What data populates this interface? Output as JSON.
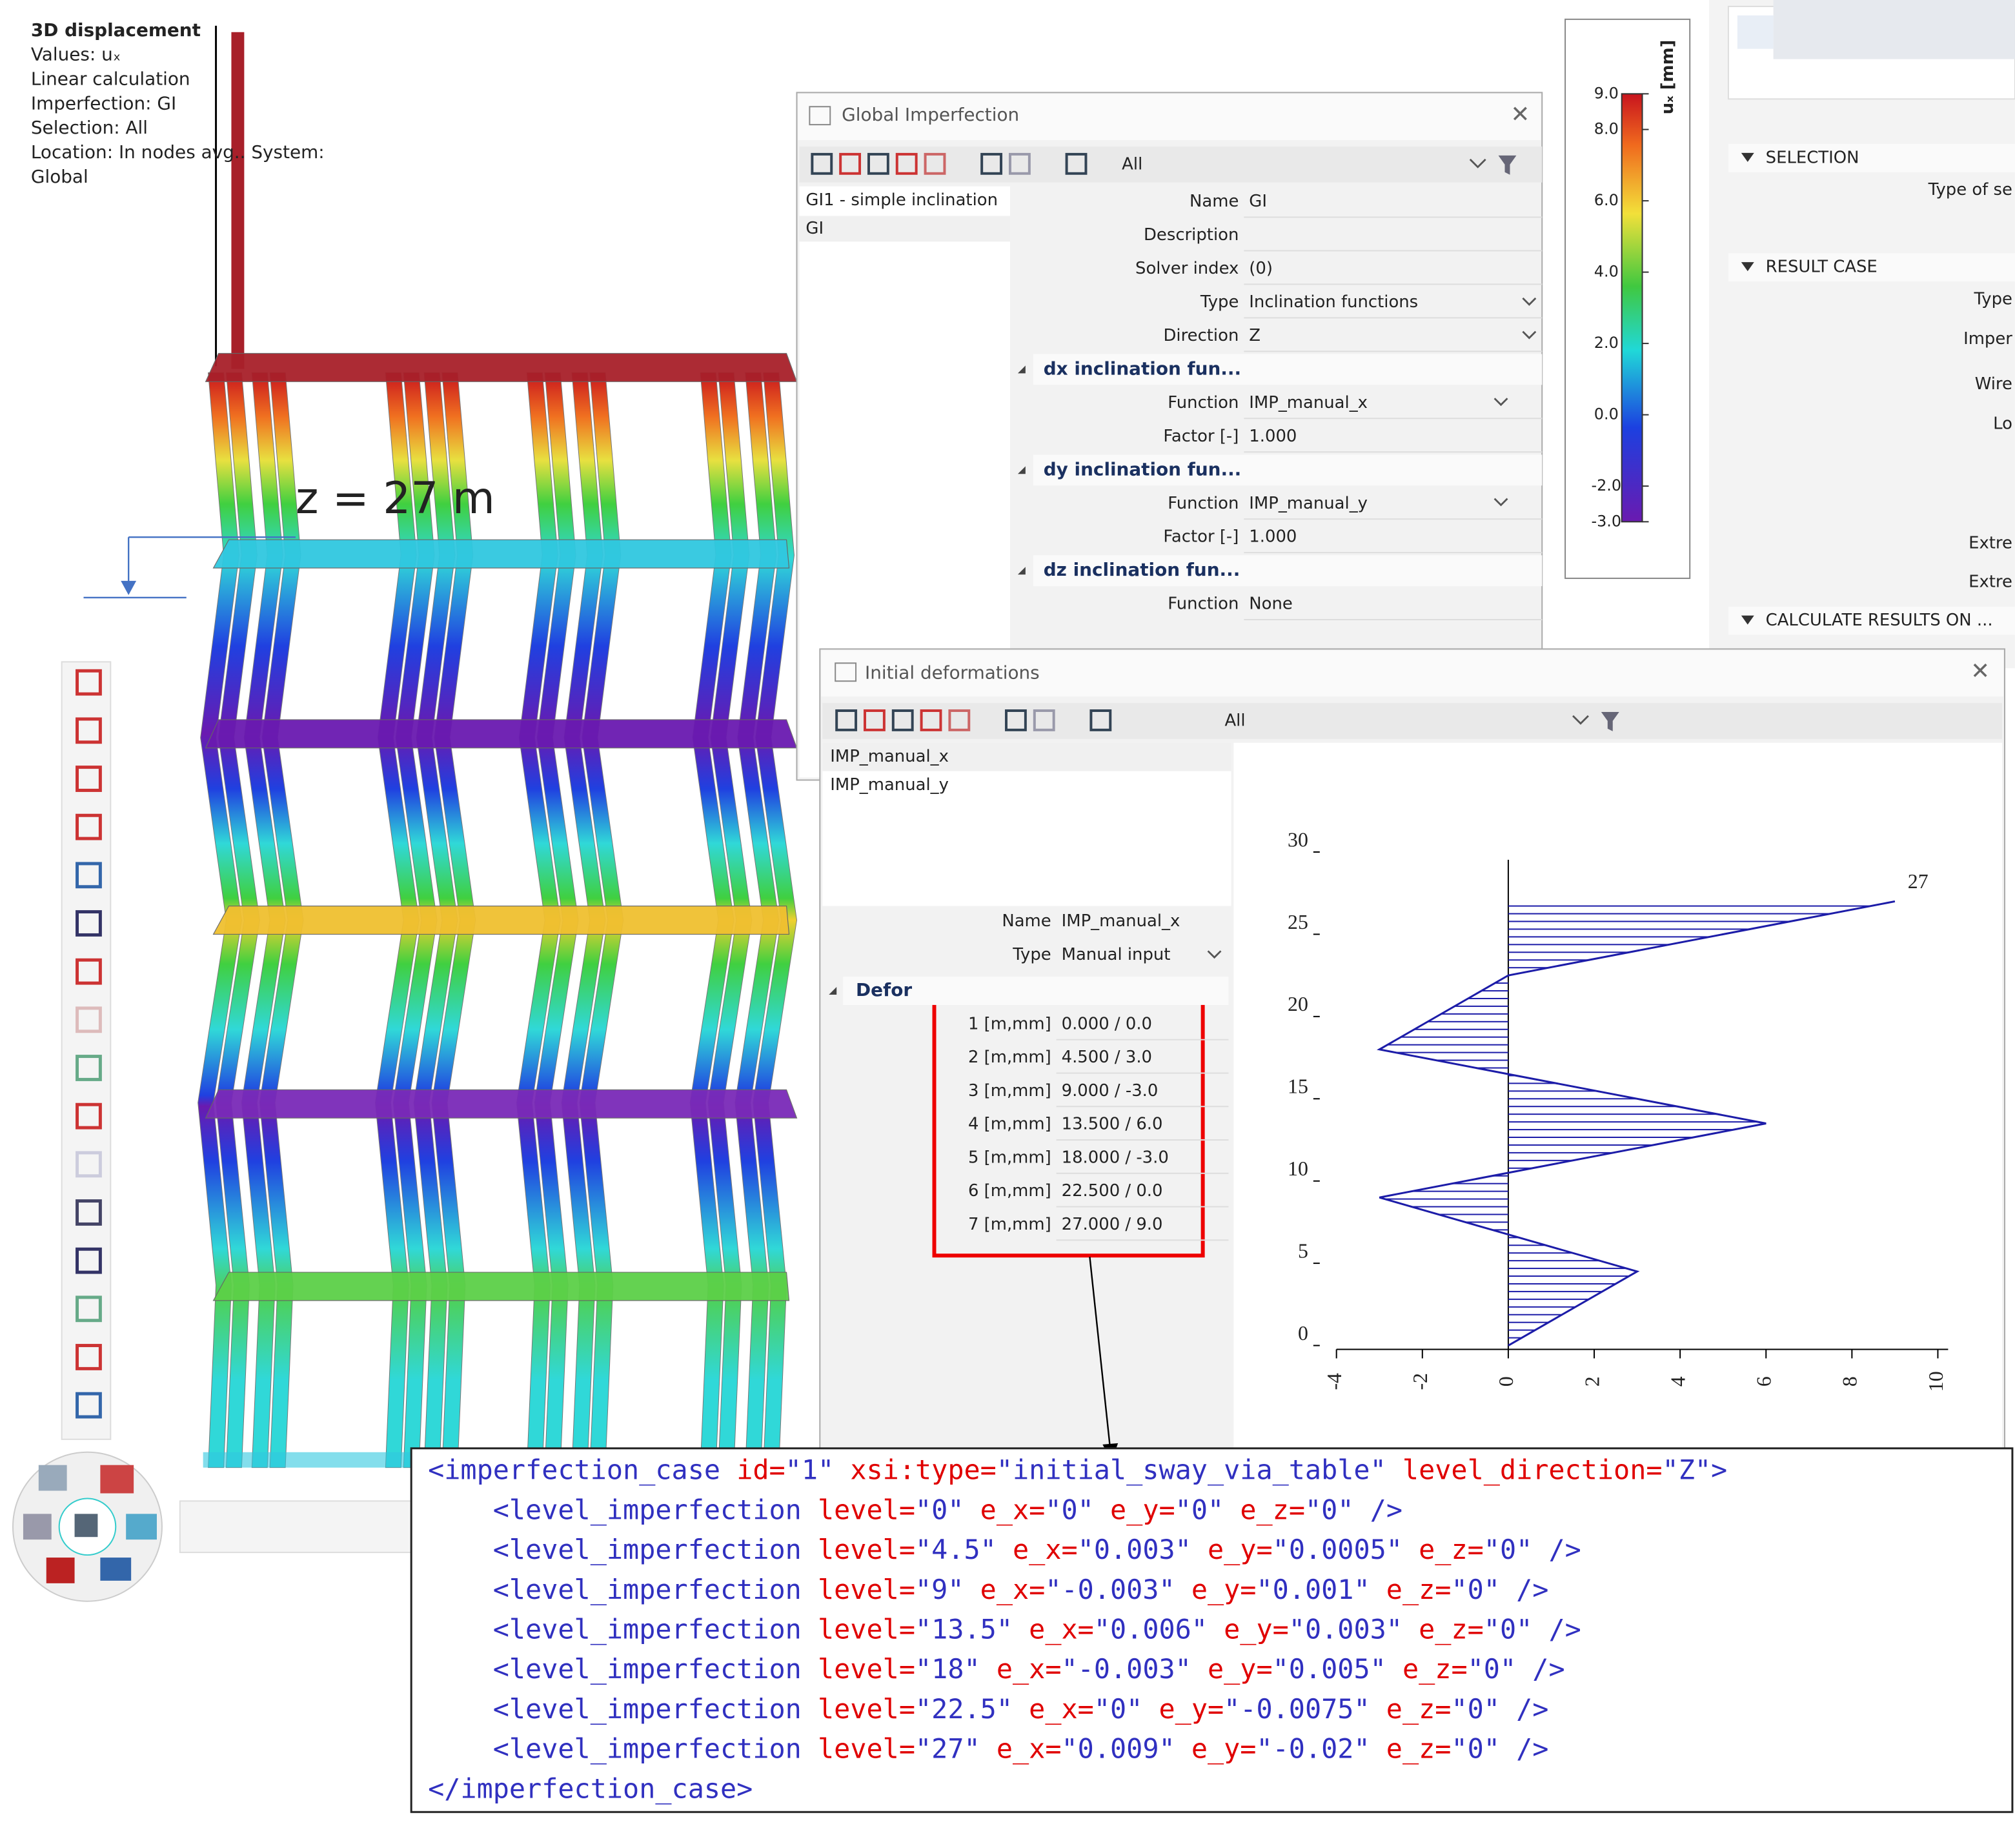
{
  "viewport_info": {
    "title": "3D displacement",
    "lines": [
      "Values: uₓ",
      "Linear calculation",
      "Imperfection: GI",
      "Selection: All",
      "Location: In nodes avg.. System:",
      "Global"
    ]
  },
  "annotation": "z = 27 m",
  "legend": {
    "title": "uₓ [mm]",
    "lim": [
      -3,
      9
    ],
    "ticks": [
      {
        "value": 9,
        "label": "9.0"
      },
      {
        "value": 8,
        "label": "8.0"
      },
      {
        "value": 6,
        "label": "6.0"
      },
      {
        "value": 4,
        "label": "4.0"
      },
      {
        "value": 2,
        "label": "2.0"
      },
      {
        "value": 0,
        "label": "0.0"
      },
      {
        "value": -2,
        "label": "-2.0"
      },
      {
        "value": -3,
        "label": "-3.0"
      }
    ]
  },
  "side_panel": {
    "sections": [
      {
        "title": "SELECTION",
        "items": [
          "Type of se"
        ]
      },
      {
        "title": "RESULT CASE",
        "items": [
          "Type",
          "Imper",
          "Wire",
          "Lo",
          "Extre",
          "Extre"
        ]
      },
      {
        "title": "CALCULATE RESULTS ON ..."
      }
    ]
  },
  "global_imperfection": {
    "title": "Global Imperfection",
    "filter": "All",
    "list": [
      "GI1 - simple inclination",
      "GI"
    ],
    "rows": [
      {
        "label": "Name",
        "value": "GI"
      },
      {
        "label": "Description"
      },
      {
        "label": "Solver index",
        "value": "(0)"
      },
      {
        "label": "Type",
        "value": "Inclination functions"
      },
      {
        "label": "Direction",
        "value": "Z"
      },
      {
        "section": "dx inclination fun..."
      },
      {
        "label": "Function",
        "value": "IMP_manual_x"
      },
      {
        "label": "Factor [-]",
        "value": "1.000"
      },
      {
        "section": "dy inclination fun..."
      },
      {
        "label": "Function",
        "value": "IMP_manual_y"
      },
      {
        "label": "Factor [-]",
        "value": "1.000"
      },
      {
        "section": "dz inclination fun..."
      },
      {
        "label": "Function",
        "value": "None"
      }
    ]
  },
  "initial_deformations": {
    "title": "Initial deformations",
    "filter": "All",
    "list": [
      "IMP_manual_x",
      "IMP_manual_y"
    ],
    "rows": [
      {
        "label": "Name",
        "value": "IMP_manual_x"
      },
      {
        "label": "Type",
        "value": "Manual input"
      }
    ],
    "section": "Defor",
    "table": [
      {
        "label": "1 [m,mm]",
        "value": "0.000 / 0.0"
      },
      {
        "label": "2 [m,mm]",
        "value": "4.500 / 3.0"
      },
      {
        "label": "3 [m,mm]",
        "value": "9.000 / -3.0"
      },
      {
        "label": "4 [m,mm]",
        "value": "13.500 / 6.0"
      },
      {
        "label": "5 [m,mm]",
        "value": "18.000 / -3.0"
      },
      {
        "label": "6 [m,mm]",
        "value": "22.500 / 0.0"
      },
      {
        "label": "7 [m,mm]",
        "value": "27.000 / 9.0"
      }
    ]
  },
  "chart_data": {
    "type": "line",
    "x": [
      0,
      3,
      -3,
      6,
      -3,
      0,
      9
    ],
    "values": [
      0,
      4.5,
      9,
      13.5,
      18,
      22.5,
      27
    ],
    "value_labels": [
      null,
      null,
      null,
      null,
      null,
      null,
      "27"
    ],
    "color": "#1c1ca8",
    "xlim": [
      -4,
      10
    ],
    "xticks": [
      -4,
      -2,
      0,
      2,
      4,
      6,
      8,
      10
    ],
    "ylim": [
      0,
      30
    ],
    "yticks": [
      0,
      5,
      10,
      15,
      20,
      25,
      30
    ]
  },
  "xml": {
    "lines": [
      "<imperfection_case id=\"1\" xsi:type=\"initial_sway_via_table\" level_direction=\"Z\">",
      "    <level_imperfection level=\"0\" e_x=\"0\" e_y=\"0\" e_z=\"0\" />",
      "    <level_imperfection level=\"4.5\" e_x=\"0.003\" e_y=\"0.0005\" e_z=\"0\" />",
      "    <level_imperfection level=\"9\" e_x=\"-0.003\" e_y=\"0.001\" e_z=\"0\" />",
      "    <level_imperfection level=\"13.5\" e_x=\"0.006\" e_y=\"0.003\" e_z=\"0\" />",
      "    <level_imperfection level=\"18\" e_x=\"-0.003\" e_y=\"0.005\" e_z=\"0\" />",
      "    <level_imperfection level=\"22.5\" e_x=\"0\" e_y=\"-0.0075\" e_z=\"0\" />",
      "    <level_imperfection level=\"27\" e_x=\"0.009\" e_y=\"-0.02\" e_z=\"0\" />",
      "</imperfection_case>"
    ]
  }
}
